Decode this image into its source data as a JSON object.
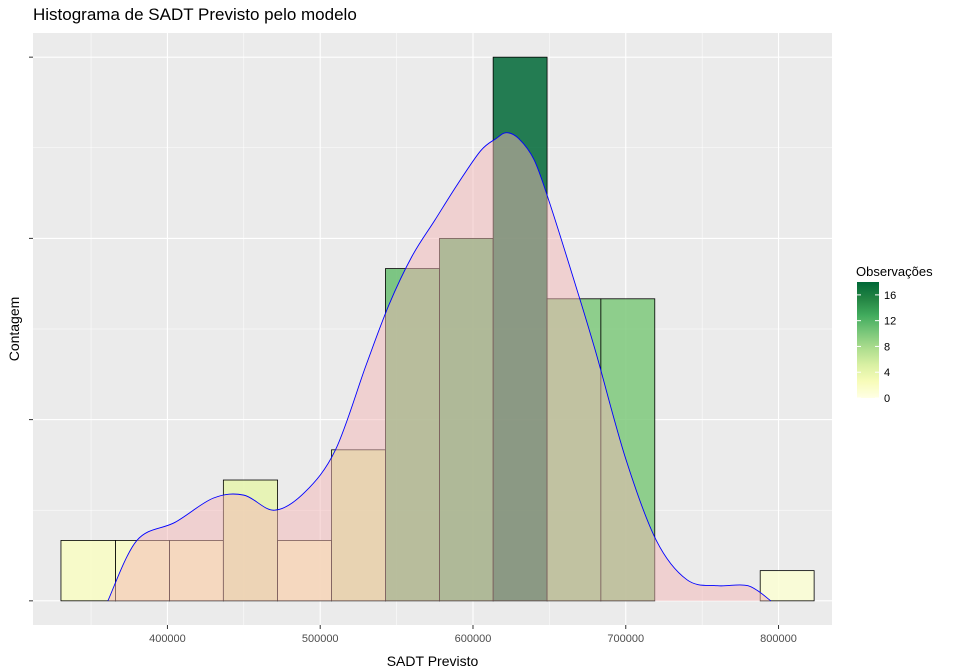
{
  "chart_data": {
    "type": "bar",
    "title": "Histograma de SADT Previsto pelo modelo",
    "xlabel": "SADT Previsto",
    "ylabel": "Contagem",
    "xlim": [
      312000,
      835000
    ],
    "ylim": [
      -0.8,
      18.8
    ],
    "x_ticks": [
      400000,
      500000,
      600000,
      700000,
      800000
    ],
    "y_ticks": [
      0,
      6,
      12,
      18
    ],
    "grid": true,
    "bins": [
      {
        "x0": 330300,
        "x1": 366000,
        "count": 2
      },
      {
        "x0": 366000,
        "x1": 401400,
        "count": 2
      },
      {
        "x0": 401400,
        "x1": 436600,
        "count": 2
      },
      {
        "x0": 436600,
        "x1": 472100,
        "count": 4
      },
      {
        "x0": 472100,
        "x1": 507400,
        "count": 2
      },
      {
        "x0": 507400,
        "x1": 542700,
        "count": 5
      },
      {
        "x0": 542700,
        "x1": 578100,
        "count": 11
      },
      {
        "x0": 578100,
        "x1": 613200,
        "count": 12
      },
      {
        "x0": 613200,
        "x1": 648500,
        "count": 18
      },
      {
        "x0": 648500,
        "x1": 683700,
        "count": 10
      },
      {
        "x0": 683700,
        "x1": 719000,
        "count": 10
      },
      {
        "x0": 719000,
        "x1": 788000,
        "count": 0
      },
      {
        "x0": 788000,
        "x1": 823300,
        "count": 1
      }
    ],
    "density_curve": {
      "x": [
        361000,
        380000,
        405000,
        430000,
        450000,
        470000,
        490000,
        510000,
        530000,
        545000,
        560000,
        575000,
        590000,
        605000,
        615000,
        622000,
        630000,
        640000,
        650000,
        665000,
        680000,
        700000,
        720000,
        740000,
        760000,
        780000,
        795000
      ],
      "y": [
        0,
        2.0,
        2.6,
        3.4,
        3.5,
        3.0,
        3.6,
        5.0,
        7.8,
        9.8,
        11.4,
        12.6,
        13.8,
        14.9,
        15.3,
        15.5,
        15.3,
        14.6,
        13.2,
        10.8,
        8.3,
        4.7,
        2.0,
        0.7,
        0.5,
        0.5,
        0
      ]
    },
    "legend": {
      "title": "Observações",
      "placement": "right",
      "breaks": [
        16,
        12,
        8,
        4,
        0
      ],
      "range": [
        0,
        18
      ],
      "colors": [
        "#ffffe5",
        "#f7fcb9",
        "#d9f0a3",
        "#addd8e",
        "#78c679",
        "#41ab5d",
        "#238443",
        "#006837"
      ]
    },
    "colors": {
      "panel_bg": "#ebebeb",
      "grid": "#ffffff",
      "bar_outline": "#000000",
      "density_fill": "#f4b6b6",
      "density_line": "#0000ff"
    }
  }
}
